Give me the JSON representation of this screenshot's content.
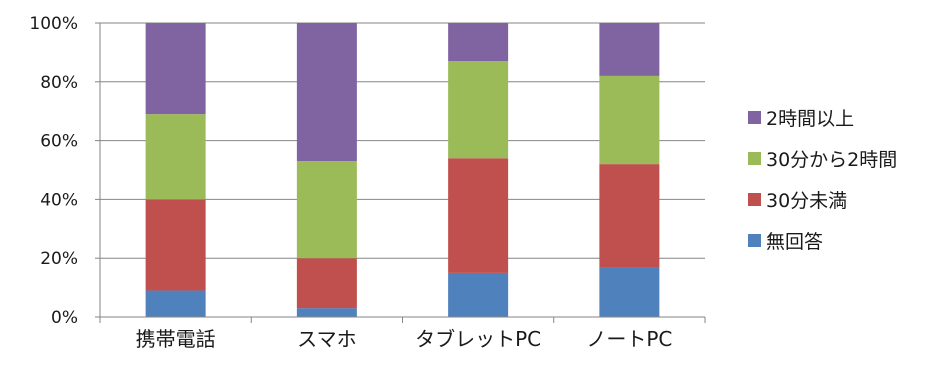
{
  "chart_data": {
    "type": "bar",
    "stacked": true,
    "percent_stacked": true,
    "categories": [
      "携帯電話",
      "スマホ",
      "タブレットPC",
      "ノートPC"
    ],
    "series": [
      {
        "name": "無回答",
        "values": [
          9,
          3,
          15,
          17
        ],
        "color": "#4F81BD"
      },
      {
        "name": "30分未満",
        "values": [
          31,
          17,
          39,
          35
        ],
        "color": "#C0504D"
      },
      {
        "name": "30分から2時間",
        "values": [
          29,
          33,
          33,
          30
        ],
        "color": "#9BBB59"
      },
      {
        "name": "2時間以上",
        "values": [
          31,
          47,
          13,
          18
        ],
        "color": "#8064A2"
      }
    ],
    "y_ticks": [
      "0%",
      "20%",
      "40%",
      "60%",
      "80%",
      "100%"
    ],
    "ylim": [
      0,
      100
    ],
    "title": "",
    "xlabel": "",
    "ylabel": "",
    "grid": true,
    "legend_position": "right",
    "legend_order": [
      "2時間以上",
      "30分から2時間",
      "30分未満",
      "無回答"
    ]
  }
}
